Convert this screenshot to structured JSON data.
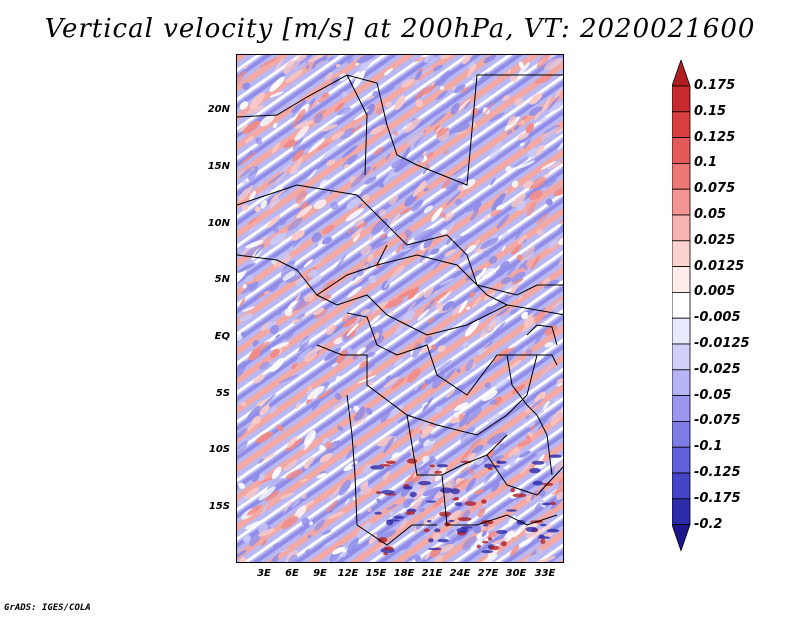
{
  "title": "Vertical velocity [m/s] at 200hPa, VT: 2020021600",
  "credit": "GrADS: IGES/COLA",
  "lat_labels": [
    "20N",
    "15N",
    "10N",
    "5N",
    "EQ",
    "5S",
    "10S",
    "15S"
  ],
  "lon_labels": [
    "3E",
    "6E",
    "9E",
    "12E",
    "15E",
    "18E",
    "21E",
    "24E",
    "27E",
    "30E",
    "33E"
  ],
  "colorbar": {
    "labels": [
      "0.175",
      "0.15",
      "0.125",
      "0.1",
      "0.075",
      "0.05",
      "0.025",
      "0.0125",
      "0.005",
      "-0.005",
      "-0.0125",
      "-0.025",
      "-0.05",
      "-0.075",
      "-0.1",
      "-0.125",
      "-0.175",
      "-0.2"
    ],
    "colors": [
      "#b11e22",
      "#c72b2d",
      "#d93f3f",
      "#e45a58",
      "#ec7774",
      "#f29594",
      "#f7b4b2",
      "#fbd2d0",
      "#fdecea",
      "#ffffff",
      "#eaeaff",
      "#d1d0fb",
      "#b6b4f5",
      "#9b97ee",
      "#7f7be5",
      "#6160d8",
      "#4544c6",
      "#2e2ba9",
      "#1d168c"
    ]
  },
  "palette": {
    "red": "#f08a86",
    "pink": "#f9c9c6",
    "blue": "#8f8de8",
    "lightblue": "#c9c8f7",
    "white": "#ffffff"
  }
}
